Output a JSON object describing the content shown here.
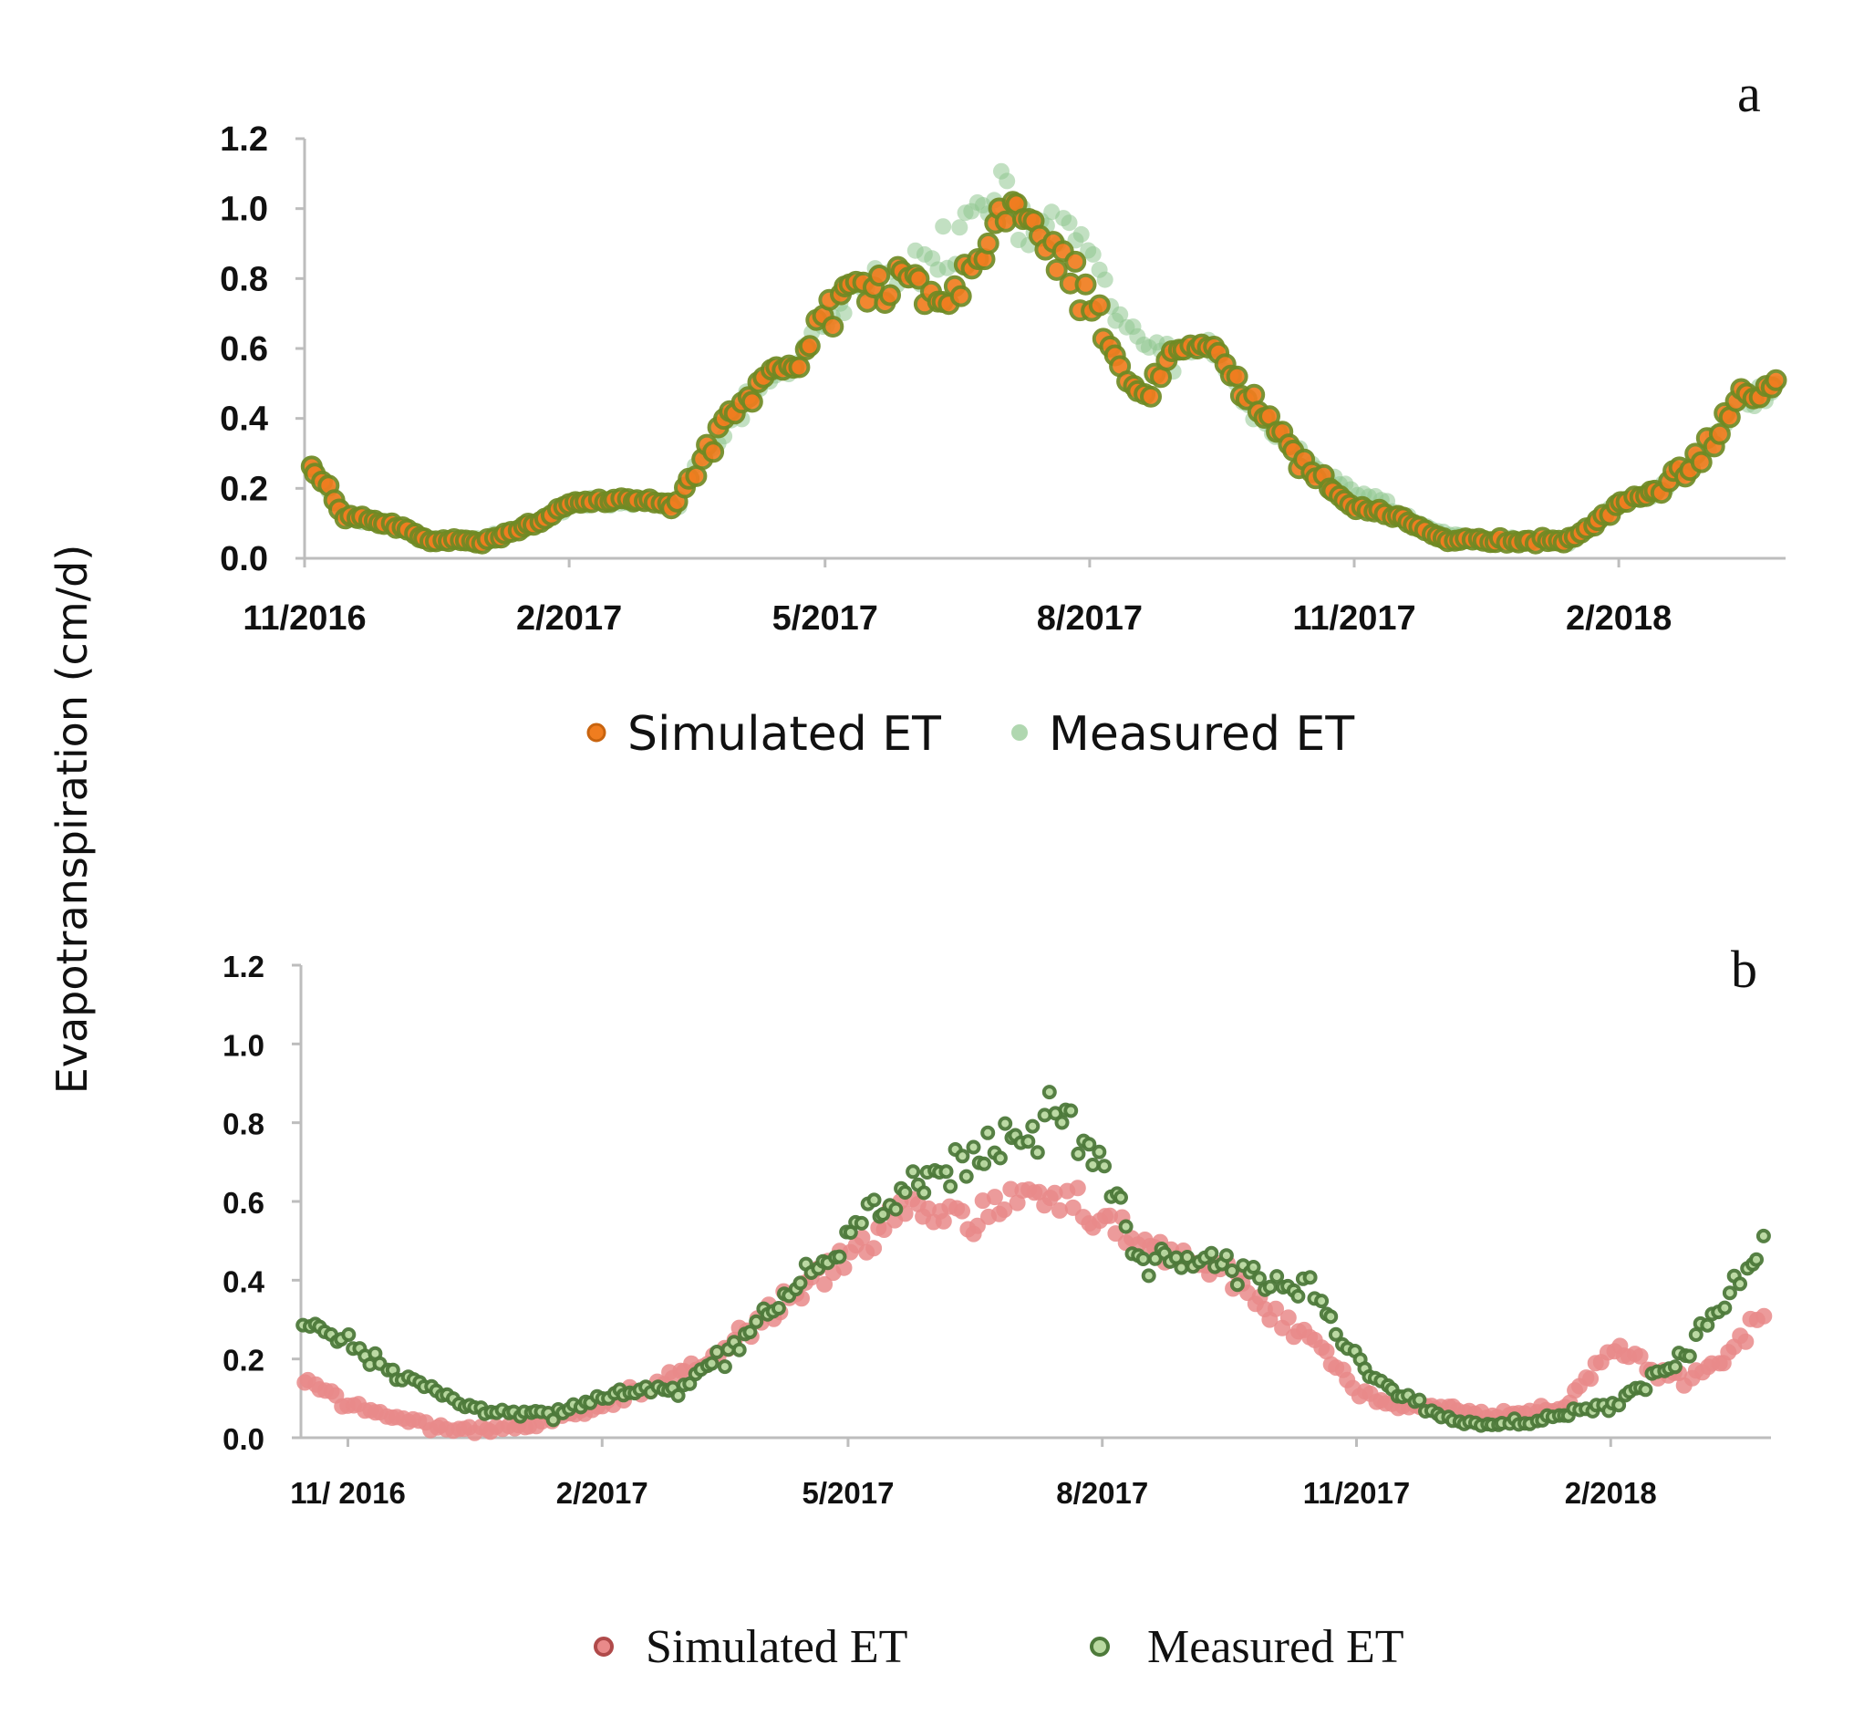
{
  "ylabel": "Evapotranspiration  (cm/d)",
  "colors": {
    "a_simulated_fill": "#f07d1f",
    "a_simulated_edge": "#c8640f",
    "a_measured": "#8fc68f",
    "a_overlap": "#6f8a24",
    "b_simulated": "#e98a8a",
    "b_simulated_edge": "#b04a4a",
    "b_measured_fill": "#b9d9a0",
    "b_measured_edge": "#4d7a3a"
  },
  "chart_data": [
    {
      "type": "scatter",
      "panel_label": "a",
      "x_axis": {
        "type": "date",
        "range": [
          "2016-11-01",
          "2018-03-31"
        ],
        "tick_labels": [
          "11/2016",
          "2/2017",
          "5/2017",
          "8/2017",
          "11/2017",
          "2/2018"
        ],
        "tick_dates": [
          "2016-11-01",
          "2017-02-01",
          "2017-05-01",
          "2017-08-01",
          "2017-11-01",
          "2018-02-01"
        ]
      },
      "y_axis": {
        "range": [
          0.0,
          1.2
        ],
        "tick_labels": [
          "0.0",
          "0.2",
          "0.4",
          "0.6",
          "0.8",
          "1.0",
          "1.2"
        ]
      },
      "grid": false,
      "legend": {
        "placement": "bottom",
        "entries": [
          "Simulated ET",
          "Measured ET"
        ]
      },
      "series": [
        {
          "name": "Simulated ET",
          "x": [
            "2016-11-03",
            "2016-11-15",
            "2016-12-01",
            "2016-12-15",
            "2017-01-01",
            "2017-01-15",
            "2017-02-01",
            "2017-02-15",
            "2017-03-01",
            "2017-03-10",
            "2017-03-20",
            "2017-04-01",
            "2017-04-10",
            "2017-04-20",
            "2017-05-01",
            "2017-05-10",
            "2017-05-20",
            "2017-06-01",
            "2017-06-10",
            "2017-06-20",
            "2017-07-01",
            "2017-07-10",
            "2017-07-20",
            "2017-08-01",
            "2017-08-10",
            "2017-08-20",
            "2017-09-01",
            "2017-09-10",
            "2017-09-20",
            "2017-10-01",
            "2017-10-15",
            "2017-11-01",
            "2017-11-15",
            "2017-12-01",
            "2017-12-15",
            "2018-01-01",
            "2018-01-15",
            "2018-02-01",
            "2018-02-15",
            "2018-03-01",
            "2018-03-15",
            "2018-03-28"
          ],
          "y": [
            0.26,
            0.12,
            0.1,
            0.05,
            0.05,
            0.08,
            0.15,
            0.17,
            0.16,
            0.15,
            0.3,
            0.42,
            0.5,
            0.55,
            0.68,
            0.74,
            0.77,
            0.8,
            0.7,
            0.82,
            0.95,
            1.0,
            0.85,
            0.72,
            0.55,
            0.45,
            0.63,
            0.6,
            0.52,
            0.4,
            0.26,
            0.15,
            0.12,
            0.06,
            0.05,
            0.05,
            0.05,
            0.15,
            0.2,
            0.28,
            0.45,
            0.5
          ]
        },
        {
          "name": "Measured ET",
          "x": [
            "2016-11-03",
            "2016-11-15",
            "2016-12-01",
            "2016-12-15",
            "2017-01-01",
            "2017-01-15",
            "2017-02-01",
            "2017-02-15",
            "2017-03-01",
            "2017-03-10",
            "2017-03-20",
            "2017-04-01",
            "2017-04-10",
            "2017-04-20",
            "2017-05-01",
            "2017-05-10",
            "2017-05-20",
            "2017-06-01",
            "2017-06-10",
            "2017-06-20",
            "2017-07-01",
            "2017-07-10",
            "2017-07-20",
            "2017-08-01",
            "2017-08-10",
            "2017-08-20",
            "2017-09-01",
            "2017-09-10",
            "2017-09-20",
            "2017-10-01",
            "2017-10-15",
            "2017-11-01",
            "2017-11-15",
            "2017-12-01",
            "2017-12-15",
            "2018-01-01",
            "2018-01-15",
            "2018-02-01",
            "2018-02-15",
            "2018-03-01",
            "2018-03-15",
            "2018-03-28"
          ],
          "y": [
            0.26,
            0.12,
            0.1,
            0.05,
            0.05,
            0.08,
            0.15,
            0.17,
            0.16,
            0.15,
            0.3,
            0.42,
            0.5,
            0.55,
            0.68,
            0.74,
            0.77,
            0.85,
            0.9,
            0.98,
            1.02,
            0.95,
            0.92,
            0.9,
            0.7,
            0.6,
            0.58,
            0.62,
            0.5,
            0.4,
            0.28,
            0.2,
            0.14,
            0.07,
            0.05,
            0.05,
            0.05,
            0.15,
            0.2,
            0.28,
            0.45,
            0.5
          ]
        }
      ]
    },
    {
      "type": "scatter",
      "panel_label": "b",
      "x_axis": {
        "type": "date",
        "range": [
          "2016-10-15",
          "2018-03-31"
        ],
        "tick_labels": [
          "11/ 2016",
          "2/2017",
          "5/2017",
          "8/2017",
          "11/2017",
          "2/2018"
        ],
        "tick_dates": [
          "2016-11-01",
          "2017-02-01",
          "2017-05-01",
          "2017-08-01",
          "2017-11-01",
          "2018-02-01"
        ]
      },
      "y_axis": {
        "range": [
          0.0,
          1.2
        ],
        "tick_labels": [
          "0.0",
          "0.2",
          "0.4",
          "0.6",
          "0.8",
          "1.0",
          "1.2"
        ]
      },
      "grid": false,
      "legend": {
        "placement": "bottom",
        "entries": [
          "Simulated ET",
          "Measured ET"
        ]
      },
      "series": [
        {
          "name": "Simulated ET",
          "x": [
            "2016-10-16",
            "2016-11-01",
            "2016-11-15",
            "2016-12-01",
            "2016-12-15",
            "2017-01-01",
            "2017-01-15",
            "2017-02-01",
            "2017-02-15",
            "2017-03-01",
            "2017-03-15",
            "2017-04-01",
            "2017-04-15",
            "2017-05-01",
            "2017-05-15",
            "2017-06-01",
            "2017-06-15",
            "2017-07-01",
            "2017-07-15",
            "2017-08-01",
            "2017-08-15",
            "2017-09-01",
            "2017-09-15",
            "2017-10-01",
            "2017-10-15",
            "2017-11-01",
            "2017-11-15",
            "2017-12-01",
            "2017-12-15",
            "2018-01-01",
            "2018-01-15",
            "2018-02-01",
            "2018-02-15",
            "2018-03-01",
            "2018-03-15",
            "2018-03-29"
          ],
          "y": [
            0.15,
            0.08,
            0.06,
            0.03,
            0.02,
            0.03,
            0.05,
            0.08,
            0.12,
            0.16,
            0.22,
            0.3,
            0.38,
            0.48,
            0.55,
            0.6,
            0.56,
            0.6,
            0.62,
            0.55,
            0.5,
            0.45,
            0.42,
            0.32,
            0.25,
            0.12,
            0.08,
            0.08,
            0.06,
            0.06,
            0.08,
            0.22,
            0.18,
            0.15,
            0.2,
            0.32
          ]
        },
        {
          "name": "Measured ET",
          "x": [
            "2016-10-16",
            "2016-11-01",
            "2016-11-15",
            "2016-12-01",
            "2016-12-15",
            "2017-01-01",
            "2017-01-15",
            "2017-02-01",
            "2017-02-15",
            "2017-03-01",
            "2017-03-15",
            "2017-04-01",
            "2017-04-15",
            "2017-05-01",
            "2017-05-15",
            "2017-06-01",
            "2017-06-15",
            "2017-07-01",
            "2017-07-15",
            "2017-08-01",
            "2017-08-15",
            "2017-09-01",
            "2017-09-15",
            "2017-10-01",
            "2017-10-15",
            "2017-11-01",
            "2017-11-15",
            "2017-12-01",
            "2017-12-15",
            "2018-01-01",
            "2018-01-15",
            "2018-02-01",
            "2018-02-15",
            "2018-03-01",
            "2018-03-15",
            "2018-03-29"
          ],
          "y": [
            0.3,
            0.25,
            0.18,
            0.12,
            0.08,
            0.06,
            0.06,
            0.1,
            0.12,
            0.12,
            0.2,
            0.3,
            0.42,
            0.5,
            0.58,
            0.68,
            0.75,
            0.72,
            0.82,
            0.7,
            0.45,
            0.48,
            0.45,
            0.4,
            0.38,
            0.2,
            0.12,
            0.06,
            0.03,
            0.04,
            0.06,
            0.08,
            0.15,
            0.22,
            0.35,
            0.5
          ]
        }
      ]
    }
  ]
}
